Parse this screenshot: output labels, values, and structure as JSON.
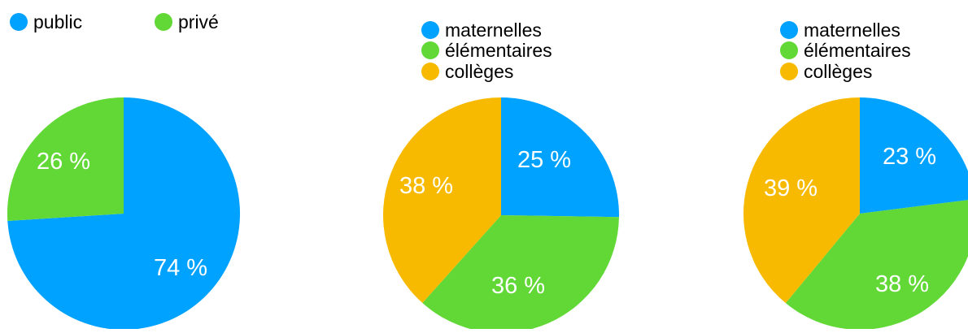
{
  "colors": {
    "blue": "#00A2FF",
    "green": "#61D836",
    "yellow": "#F7BA00",
    "label": "#ffffff",
    "legend_text": "#000000"
  },
  "chart_data": [
    {
      "type": "pie",
      "title": "",
      "legend_placement": "top-left",
      "legend": [
        {
          "label": "public",
          "color": "#00A2FF"
        },
        {
          "label": "privé",
          "color": "#61D836"
        }
      ],
      "slices": [
        {
          "label": "public",
          "value": 74,
          "value_label": "74 %",
          "color": "#00A2FF"
        },
        {
          "label": "privé",
          "value": 26,
          "value_label": "26 %",
          "color": "#61D836"
        }
      ]
    },
    {
      "type": "pie",
      "title": "",
      "legend_placement": "top",
      "legend": [
        {
          "label": "maternelles",
          "color": "#00A2FF"
        },
        {
          "label": "élémentaires",
          "color": "#61D836"
        },
        {
          "label": "collèges",
          "color": "#F7BA00"
        }
      ],
      "slices": [
        {
          "label": "maternelles",
          "value": 25,
          "value_label": "25 %",
          "color": "#00A2FF"
        },
        {
          "label": "élémentaires",
          "value": 36,
          "value_label": "36 %",
          "color": "#61D836"
        },
        {
          "label": "collèges",
          "value": 38,
          "value_label": "38 %",
          "color": "#F7BA00"
        }
      ]
    },
    {
      "type": "pie",
      "title": "",
      "legend_placement": "top-right",
      "legend": [
        {
          "label": "maternelles",
          "color": "#00A2FF"
        },
        {
          "label": "élémentaires",
          "color": "#61D836"
        },
        {
          "label": "collèges",
          "color": "#F7BA00"
        }
      ],
      "slices": [
        {
          "label": "maternelles",
          "value": 23,
          "value_label": "23 %",
          "color": "#00A2FF"
        },
        {
          "label": "élémentaires",
          "value": 38,
          "value_label": "38 %",
          "color": "#61D836"
        },
        {
          "label": "collèges",
          "value": 39,
          "value_label": "39 %",
          "color": "#F7BA00"
        }
      ]
    }
  ]
}
